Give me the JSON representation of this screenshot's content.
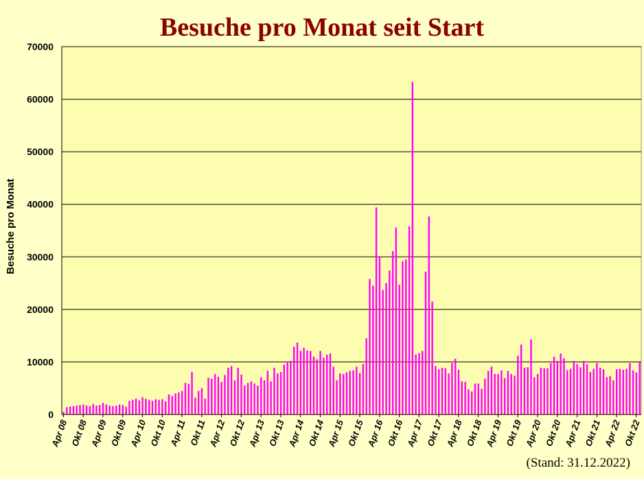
{
  "title": "Besuche pro Monat seit Start",
  "footnote": "(Stand: 31.12.2022)",
  "colors": {
    "background": "#ffffc8",
    "title": "#8b0000",
    "bar": "#ff00ff",
    "plot_bg": "#fdfdb0"
  },
  "chart_data": {
    "type": "bar",
    "title": "Besuche pro Monat seit Start",
    "xlabel": "",
    "ylabel": "Besuche pro Monat",
    "ylim": [
      0,
      70000
    ],
    "yticks": [
      0,
      10000,
      20000,
      30000,
      40000,
      50000,
      60000,
      70000
    ],
    "grid": true,
    "legend": "none",
    "x_tick_labels": [
      "Apr 08",
      "Okt 08",
      "Apr 09",
      "Okt 09",
      "Apr 10",
      "Okt 10",
      "Apr 11",
      "Okt 11",
      "Apr 12",
      "Okt 12",
      "Apr 13",
      "Okt 13",
      "Apr 14",
      "Okt 14",
      "Apr 15",
      "Okt 15",
      "Apr 16",
      "Okt 16",
      "Apr 17",
      "Okt 17",
      "Apr 18",
      "Okt 18",
      "Apr 19",
      "Okt 19",
      "Apr 20",
      "Okt 20",
      "Apr 21",
      "Okt 21",
      "Apr 22",
      "Okt 22"
    ],
    "start_month": "2008-04",
    "values": [
      500,
      1400,
      1500,
      1600,
      1700,
      1800,
      1900,
      1700,
      1600,
      2000,
      1700,
      1800,
      2200,
      1900,
      1700,
      1600,
      1700,
      1900,
      1800,
      1500,
      2600,
      2800,
      3000,
      2700,
      3300,
      3000,
      2800,
      2600,
      2900,
      2800,
      2900,
      2500,
      3800,
      3500,
      4000,
      4200,
      4500,
      6000,
      5800,
      8100,
      3200,
      4500,
      5000,
      3000,
      7000,
      6800,
      7700,
      7200,
      6200,
      7500,
      8900,
      9200,
      6500,
      8900,
      7600,
      5500,
      6000,
      6300,
      5900,
      5500,
      7100,
      6500,
      8300,
      6300,
      8900,
      7800,
      8100,
      9500,
      10000,
      10200,
      12900,
      13700,
      12100,
      12700,
      12200,
      12100,
      11000,
      10500,
      12100,
      10800,
      11400,
      11600,
      9100,
      6500,
      7800,
      7700,
      8000,
      8300,
      8400,
      9100,
      7900,
      9600,
      14500,
      25800,
      24500,
      39400,
      29900,
      23700,
      25000,
      27400,
      31100,
      35600,
      24700,
      29200,
      29500,
      35800,
      63300,
      11400,
      11700,
      12100,
      27200,
      37700,
      21500,
      9200,
      8600,
      8900,
      8800,
      7800,
      9800,
      10600,
      8500,
      6300,
      6200,
      4800,
      4400,
      5900,
      5900,
      4900,
      6800,
      8300,
      9100,
      7700,
      7700,
      8400,
      6900,
      8300,
      7700,
      7400,
      11200,
      13300,
      8900,
      9000,
      14300,
      7100,
      7700,
      8900,
      8800,
      8800,
      9800,
      11000,
      10200,
      11600,
      10700,
      8400,
      8700,
      10200,
      9600,
      9000,
      10200,
      9600,
      8100,
      8700,
      9800,
      8900,
      8600,
      7100,
      7300,
      6500,
      8600,
      8700,
      8500,
      8700,
      9800,
      8400,
      8000,
      9900
    ]
  }
}
